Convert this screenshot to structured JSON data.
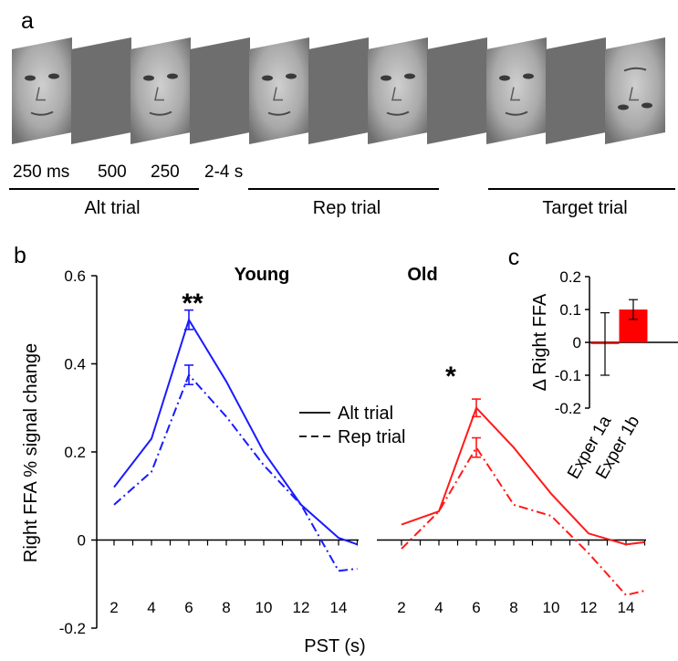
{
  "panel_labels": {
    "a": "a",
    "b": "b",
    "c": "c"
  },
  "stimulus": {
    "timing_labels": [
      "250 ms",
      "500",
      "250",
      "2-4 s"
    ],
    "trials": [
      {
        "label": "Alt trial",
        "frames": [
          "face-female",
          "blank",
          "face-female",
          "blank"
        ]
      },
      {
        "label": "Rep trial",
        "frames": [
          "face-male",
          "blank",
          "face-male",
          "blank"
        ]
      },
      {
        "label": "Target trial",
        "frames": [
          "face-male",
          "blank",
          "face-inverted"
        ]
      }
    ]
  },
  "colors": {
    "young": "#1a1aff",
    "old": "#ff1a1a",
    "bar": "#ff0000",
    "blank_frame": "#6e6e6e"
  },
  "chart_data": [
    {
      "type": "line",
      "ylabel": "Right FFA % signal change",
      "xlabel": "PST (s)",
      "ylim": [
        -0.2,
        0.6
      ],
      "yticks": [
        "0.6",
        "0.4",
        "0.2",
        "0",
        "-0.2"
      ],
      "xticks": [
        "2",
        "4",
        "6",
        "8",
        "10",
        "12",
        "14"
      ],
      "legend": [
        {
          "label": "Alt trial",
          "style": "solid"
        },
        {
          "label": "Rep trial",
          "style": "dashed"
        }
      ],
      "groups": [
        {
          "title": "Young",
          "color": "#1a1aff",
          "significance": "**",
          "x": [
            2,
            4,
            6,
            8,
            10,
            12,
            14,
            15
          ],
          "series": [
            {
              "name": "Alt trial",
              "style": "solid",
              "values": [
                0.12,
                0.23,
                0.5,
                0.36,
                0.2,
                0.08,
                0.005,
                -0.01
              ],
              "error_at_6": 0.022
            },
            {
              "name": "Rep trial",
              "style": "dashed",
              "values": [
                0.08,
                0.155,
                0.375,
                0.28,
                0.17,
                0.08,
                -0.07,
                -0.065
              ],
              "error_at_6": 0.022
            }
          ]
        },
        {
          "title": "Old",
          "color": "#ff1a1a",
          "significance": "*",
          "x": [
            2,
            4,
            6,
            8,
            10,
            12,
            14,
            15
          ],
          "series": [
            {
              "name": "Alt trial",
              "style": "solid",
              "values": [
                0.035,
                0.065,
                0.3,
                0.21,
                0.105,
                0.015,
                -0.01,
                -0.005
              ],
              "error_at_6": 0.02
            },
            {
              "name": "Rep trial",
              "style": "dashed",
              "values": [
                -0.02,
                0.065,
                0.21,
                0.08,
                0.055,
                -0.03,
                -0.125,
                -0.115
              ],
              "error_at_6": 0.022
            }
          ]
        }
      ]
    },
    {
      "type": "bar",
      "ylabel": "Δ Right FFA",
      "categories": [
        "Exper 1a",
        "Exper 1b"
      ],
      "values": [
        -0.005,
        0.1
      ],
      "errors": [
        0.095,
        0.03
      ],
      "ylim": [
        -0.2,
        0.2
      ],
      "yticks": [
        "0.2",
        "0.1",
        "0",
        "-0.1",
        "-0.2"
      ]
    }
  ]
}
